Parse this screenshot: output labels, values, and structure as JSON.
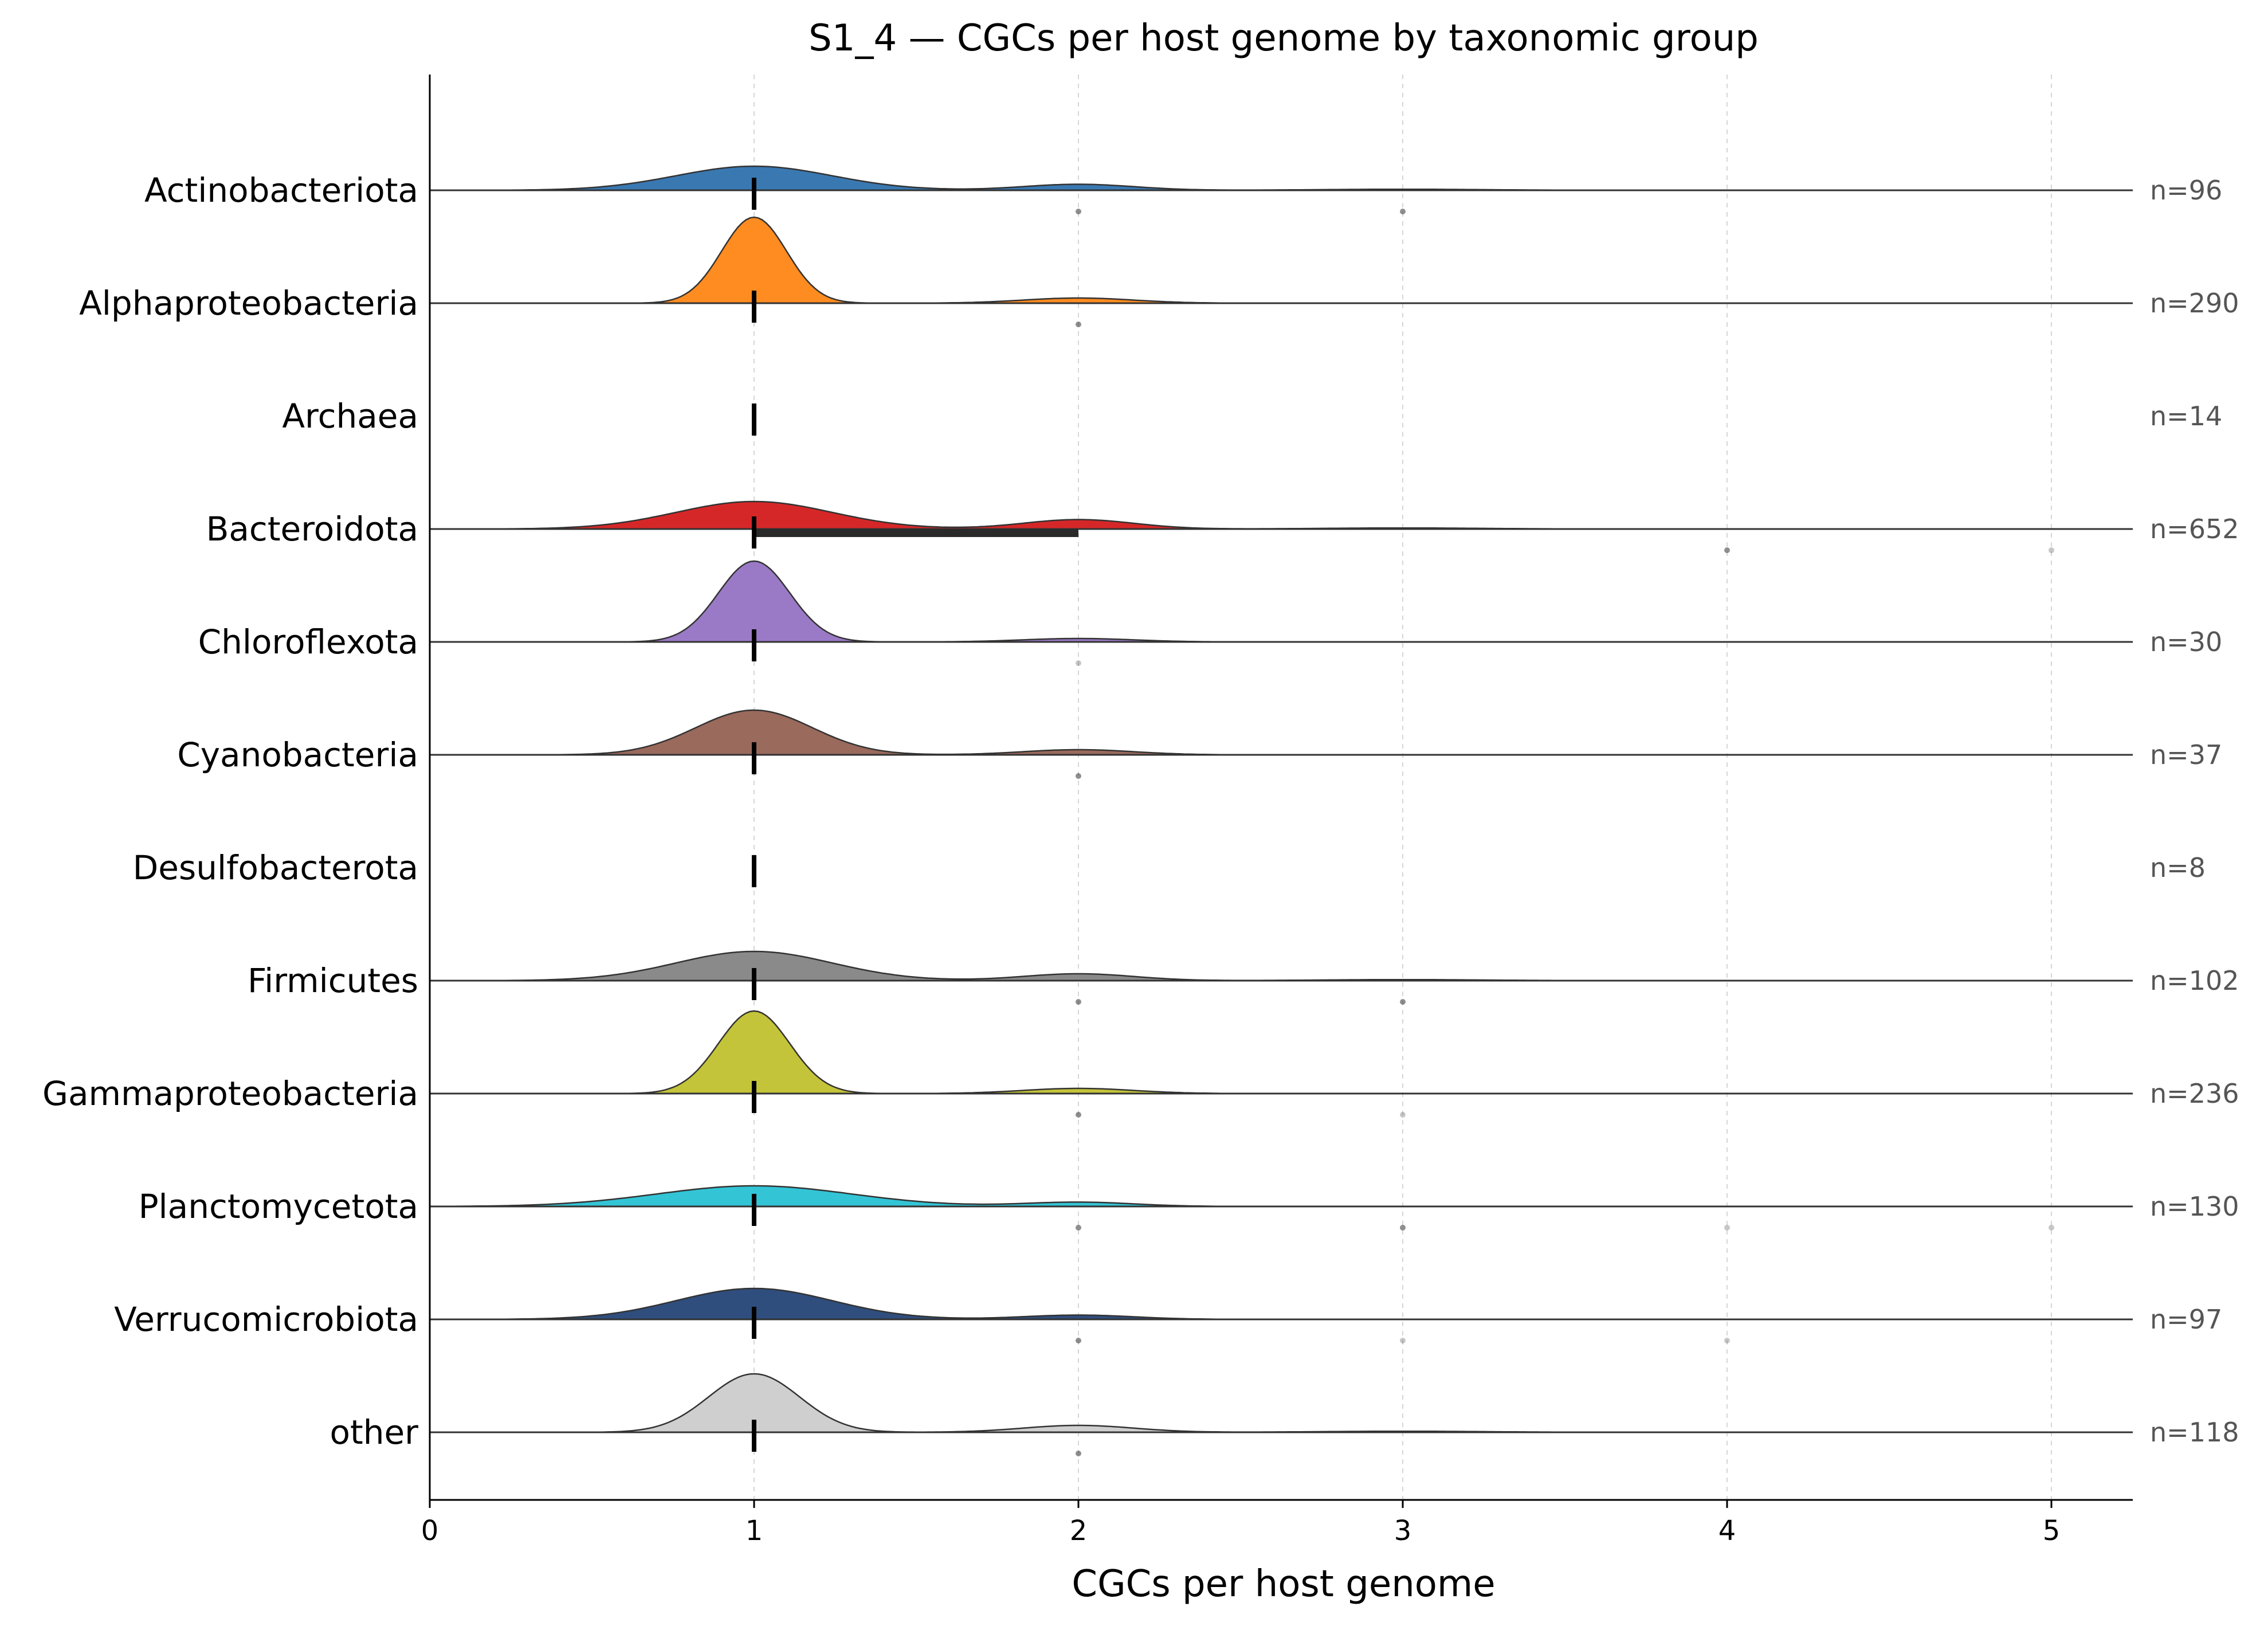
{
  "chart_data": {
    "type": "ridgeline",
    "title": "S1_4 — CGCs per host genome by taxonomic group",
    "xlabel": "CGCs per host genome",
    "ylabel": "",
    "xlim": [
      0,
      5.25
    ],
    "xticks": [
      "0",
      "1",
      "2",
      "3",
      "4",
      "5"
    ],
    "xtick_values": [
      0,
      1,
      2,
      3,
      4,
      5
    ],
    "grid": "vertical dashed at x ticks",
    "groups": [
      {
        "name": "Actinobacteriota",
        "n_label": "n=96",
        "color": "#3a78b2",
        "median": 1,
        "iqr": [
          1,
          1
        ],
        "peak_main": 0.28,
        "peak_2": 0.07,
        "width_main": 0.24,
        "outliers": [
          {
            "x": 2,
            "a": 0.6
          },
          {
            "x": 3,
            "a": 0.6
          }
        ]
      },
      {
        "name": "Alphaproteobacteria",
        "n_label": "n=290",
        "color": "#ff8c20",
        "median": 1,
        "iqr": [
          1,
          1
        ],
        "peak_main": 1.0,
        "peak_2": 0.06,
        "width_main": 0.1,
        "outliers": [
          {
            "x": 2,
            "a": 0.6
          }
        ]
      },
      {
        "name": "Archaea",
        "n_label": "n=14",
        "color": "#2ca02c",
        "median": 1,
        "iqr": [
          1,
          1
        ],
        "peak_main": 0,
        "peak_2": 0,
        "width_main": 0.1,
        "outliers": []
      },
      {
        "name": "Bacteroidota",
        "n_label": "n=652",
        "color": "#d62728",
        "median": 1,
        "iqr": [
          1,
          2
        ],
        "peak_main": 0.32,
        "peak_2": 0.11,
        "width_main": 0.24,
        "outliers": [
          {
            "x": 4,
            "a": 0.6
          },
          {
            "x": 5,
            "a": 0.3
          }
        ]
      },
      {
        "name": "Chloroflexota",
        "n_label": "n=30",
        "color": "#9a7ac6",
        "median": 1,
        "iqr": [
          1,
          1
        ],
        "peak_main": 0.94,
        "peak_2": 0.04,
        "width_main": 0.11,
        "outliers": [
          {
            "x": 2,
            "a": 0.3
          }
        ]
      },
      {
        "name": "Cyanobacteria",
        "n_label": "n=37",
        "color": "#9a6a5c",
        "median": 1,
        "iqr": [
          1,
          1
        ],
        "peak_main": 0.52,
        "peak_2": 0.06,
        "width_main": 0.18,
        "outliers": [
          {
            "x": 2,
            "a": 0.6
          }
        ]
      },
      {
        "name": "Desulfobacterota",
        "n_label": "n=8",
        "color": "#e377c2",
        "median": 1,
        "iqr": [
          1,
          1
        ],
        "peak_main": 0,
        "peak_2": 0,
        "width_main": 0.1,
        "outliers": []
      },
      {
        "name": "Firmicutes",
        "n_label": "n=102",
        "color": "#8a8a8a",
        "median": 1,
        "iqr": [
          1,
          1
        ],
        "peak_main": 0.34,
        "peak_2": 0.08,
        "width_main": 0.24,
        "outliers": [
          {
            "x": 2,
            "a": 0.6
          },
          {
            "x": 3,
            "a": 0.6
          }
        ]
      },
      {
        "name": "Gammaproteobacteria",
        "n_label": "n=236",
        "color": "#c4c43a",
        "median": 1,
        "iqr": [
          1,
          1
        ],
        "peak_main": 0.96,
        "peak_2": 0.06,
        "width_main": 0.11,
        "outliers": [
          {
            "x": 2,
            "a": 0.6
          },
          {
            "x": 3,
            "a": 0.3
          }
        ]
      },
      {
        "name": "Planctomycetota",
        "n_label": "n=130",
        "color": "#33c4d6",
        "median": 1,
        "iqr": [
          1,
          1
        ],
        "peak_main": 0.24,
        "peak_2": 0.05,
        "width_main": 0.3,
        "outliers": [
          {
            "x": 2,
            "a": 0.6
          },
          {
            "x": 3,
            "a": 0.6
          },
          {
            "x": 4,
            "a": 0.3
          },
          {
            "x": 5,
            "a": 0.3
          }
        ]
      },
      {
        "name": "Verrucomicrobiota",
        "n_label": "n=97",
        "color": "#2f4e7e",
        "median": 1,
        "iqr": [
          1,
          1
        ],
        "peak_main": 0.36,
        "peak_2": 0.05,
        "width_main": 0.24,
        "outliers": [
          {
            "x": 2,
            "a": 0.6
          },
          {
            "x": 3,
            "a": 0.3
          },
          {
            "x": 4,
            "a": 0.3
          }
        ]
      },
      {
        "name": "other",
        "n_label": "n=118",
        "color": "#cfcfcf",
        "median": 1,
        "iqr": [
          1,
          1
        ],
        "peak_main": 0.68,
        "peak_2": 0.08,
        "width_main": 0.14,
        "outliers": [
          {
            "x": 2,
            "a": 0.6
          }
        ]
      }
    ]
  }
}
